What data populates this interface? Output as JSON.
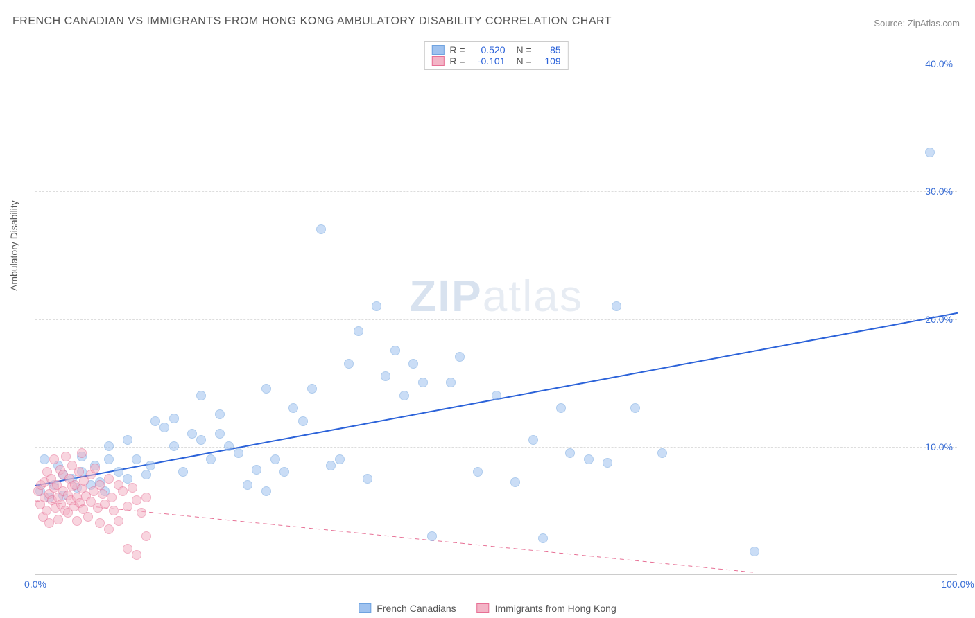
{
  "title": "FRENCH CANADIAN VS IMMIGRANTS FROM HONG KONG AMBULATORY DISABILITY CORRELATION CHART",
  "source_label": "Source:",
  "source_name": "ZipAtlas.com",
  "watermark_a": "ZIP",
  "watermark_b": "atlas",
  "chart": {
    "type": "scatter",
    "ylabel": "Ambulatory Disability",
    "xlim": [
      0,
      100
    ],
    "ylim": [
      0,
      42
    ],
    "x_ticks": [
      {
        "v": 0,
        "label": "0.0%",
        "color": "#3b6fd6"
      },
      {
        "v": 100,
        "label": "100.0%",
        "color": "#3b6fd6"
      }
    ],
    "y_ticks": [
      {
        "v": 10,
        "label": "10.0%"
      },
      {
        "v": 20,
        "label": "20.0%"
      },
      {
        "v": 30,
        "label": "30.0%"
      },
      {
        "v": 40,
        "label": "40.0%"
      }
    ],
    "y_tick_color": "#3b6fd6",
    "gridline_color": "#dddddd",
    "background_color": "#ffffff",
    "point_radius": 7,
    "point_opacity": 0.55,
    "series": [
      {
        "name": "French Canadians",
        "color": "#9fc2ef",
        "stroke": "#6fa3e0",
        "r": "0.520",
        "n": "85",
        "trend": {
          "x1": 0,
          "y1": 7.0,
          "x2": 100,
          "y2": 20.5,
          "color": "#2b62d9",
          "width": 2,
          "dash": "none"
        },
        "points": [
          [
            0.5,
            6.5
          ],
          [
            1,
            9
          ],
          [
            1.5,
            6
          ],
          [
            2,
            7
          ],
          [
            2.5,
            8.5
          ],
          [
            3,
            6.2
          ],
          [
            3,
            7.8
          ],
          [
            4,
            7.5
          ],
          [
            4.5,
            6.8
          ],
          [
            5,
            8
          ],
          [
            5,
            9.2
          ],
          [
            6,
            7
          ],
          [
            6.5,
            8.5
          ],
          [
            7,
            7.2
          ],
          [
            7.5,
            6.5
          ],
          [
            8,
            9
          ],
          [
            8,
            10
          ],
          [
            9,
            8
          ],
          [
            10,
            7.5
          ],
          [
            10,
            10.5
          ],
          [
            11,
            9
          ],
          [
            12,
            7.8
          ],
          [
            12.5,
            8.5
          ],
          [
            13,
            12
          ],
          [
            14,
            11.5
          ],
          [
            15,
            10
          ],
          [
            15,
            12.2
          ],
          [
            16,
            8
          ],
          [
            17,
            11
          ],
          [
            18,
            10.5
          ],
          [
            18,
            14
          ],
          [
            19,
            9
          ],
          [
            20,
            11
          ],
          [
            20,
            12.5
          ],
          [
            21,
            10
          ],
          [
            22,
            9.5
          ],
          [
            23,
            7
          ],
          [
            24,
            8.2
          ],
          [
            25,
            14.5
          ],
          [
            25,
            6.5
          ],
          [
            26,
            9
          ],
          [
            27,
            8
          ],
          [
            28,
            13
          ],
          [
            29,
            12
          ],
          [
            30,
            14.5
          ],
          [
            31,
            27
          ],
          [
            32,
            8.5
          ],
          [
            33,
            9
          ],
          [
            34,
            16.5
          ],
          [
            35,
            19
          ],
          [
            36,
            7.5
          ],
          [
            37,
            21
          ],
          [
            38,
            15.5
          ],
          [
            39,
            17.5
          ],
          [
            40,
            14
          ],
          [
            41,
            16.5
          ],
          [
            42,
            15
          ],
          [
            43,
            3
          ],
          [
            45,
            15
          ],
          [
            46,
            17
          ],
          [
            48,
            8
          ],
          [
            50,
            14
          ],
          [
            52,
            7.2
          ],
          [
            54,
            10.5
          ],
          [
            55,
            2.8
          ],
          [
            57,
            13
          ],
          [
            58,
            9.5
          ],
          [
            60,
            9
          ],
          [
            62,
            8.7
          ],
          [
            63,
            21
          ],
          [
            65,
            13
          ],
          [
            68,
            9.5
          ],
          [
            78,
            1.8
          ],
          [
            97,
            33
          ]
        ]
      },
      {
        "name": "Immigrants from Hong Kong",
        "color": "#f3b4c6",
        "stroke": "#e77095",
        "r": "-0.101",
        "n": "109",
        "trend": {
          "x1": 0,
          "y1": 5.8,
          "x2": 78,
          "y2": 0.2,
          "color": "#e77095",
          "width": 1,
          "dash": "6 5"
        },
        "points": [
          [
            0.3,
            6.5
          ],
          [
            0.5,
            5.5
          ],
          [
            0.6,
            7
          ],
          [
            0.8,
            4.5
          ],
          [
            1,
            6
          ],
          [
            1,
            7.2
          ],
          [
            1.2,
            5
          ],
          [
            1.3,
            8
          ],
          [
            1.5,
            6.3
          ],
          [
            1.5,
            4
          ],
          [
            1.7,
            7.5
          ],
          [
            1.8,
            5.8
          ],
          [
            2,
            6.8
          ],
          [
            2,
            9
          ],
          [
            2.2,
            5.2
          ],
          [
            2.3,
            7
          ],
          [
            2.5,
            6
          ],
          [
            2.5,
            4.3
          ],
          [
            2.7,
            8.2
          ],
          [
            2.8,
            5.5
          ],
          [
            3,
            6.5
          ],
          [
            3,
            7.8
          ],
          [
            3.2,
            5
          ],
          [
            3.3,
            9.2
          ],
          [
            3.5,
            6.2
          ],
          [
            3.5,
            4.8
          ],
          [
            3.7,
            7.5
          ],
          [
            3.8,
            5.8
          ],
          [
            4,
            6.9
          ],
          [
            4,
            8.5
          ],
          [
            4.2,
            5.3
          ],
          [
            4.3,
            7
          ],
          [
            4.5,
            6
          ],
          [
            4.5,
            4.2
          ],
          [
            4.7,
            8
          ],
          [
            4.8,
            5.6
          ],
          [
            5,
            6.7
          ],
          [
            5,
            9.5
          ],
          [
            5.2,
            5.1
          ],
          [
            5.3,
            7.3
          ],
          [
            5.5,
            6.1
          ],
          [
            5.7,
            4.5
          ],
          [
            6,
            7.8
          ],
          [
            6,
            5.7
          ],
          [
            6.3,
            6.5
          ],
          [
            6.5,
            8.3
          ],
          [
            6.8,
            5.2
          ],
          [
            7,
            7
          ],
          [
            7,
            4
          ],
          [
            7.3,
            6.3
          ],
          [
            7.5,
            5.5
          ],
          [
            8,
            7.5
          ],
          [
            8,
            3.5
          ],
          [
            8.3,
            6
          ],
          [
            8.5,
            5
          ],
          [
            9,
            7
          ],
          [
            9,
            4.2
          ],
          [
            9.5,
            6.5
          ],
          [
            10,
            5.3
          ],
          [
            10,
            2
          ],
          [
            10.5,
            6.8
          ],
          [
            11,
            5.8
          ],
          [
            11,
            1.5
          ],
          [
            11.5,
            4.8
          ],
          [
            12,
            6
          ],
          [
            12,
            3
          ]
        ]
      }
    ]
  },
  "bottom_legend": [
    {
      "label": "French Canadians",
      "color": "#9fc2ef",
      "stroke": "#6fa3e0"
    },
    {
      "label": "Immigrants from Hong Kong",
      "color": "#f3b4c6",
      "stroke": "#e77095"
    }
  ]
}
